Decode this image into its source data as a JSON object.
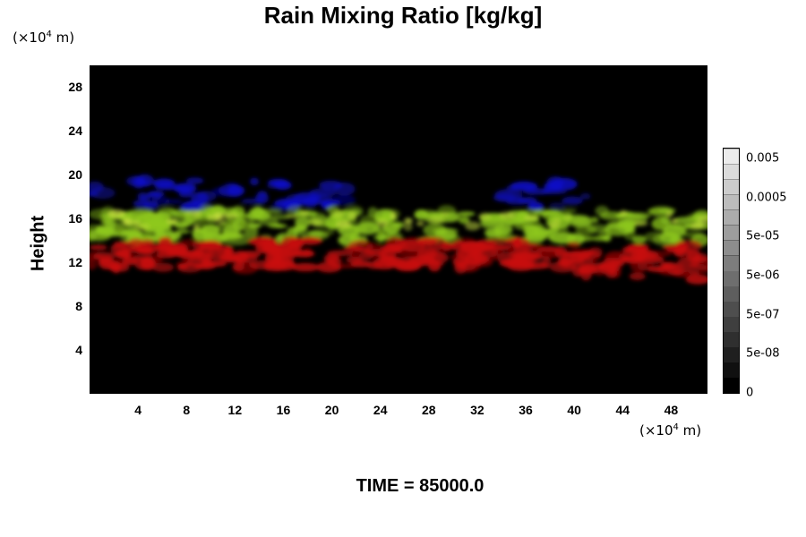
{
  "chart_data": {
    "type": "heatmap",
    "title": "Rain Mixing Ratio [kg/kg]",
    "ylabel": "Height",
    "y_unit": "(×10",
    "x_unit": "(×10",
    "unit_exp": "4",
    "unit_tail": " m)",
    "x_ticks": [
      "4",
      "8",
      "12",
      "16",
      "20",
      "24",
      "28",
      "32",
      "36",
      "40",
      "44",
      "48"
    ],
    "x_tick_values": [
      4,
      8,
      12,
      16,
      20,
      24,
      28,
      32,
      36,
      40,
      44,
      48
    ],
    "y_ticks": [
      "4",
      "8",
      "12",
      "16",
      "20",
      "24",
      "28"
    ],
    "y_tick_values": [
      4,
      8,
      12,
      16,
      20,
      24,
      28
    ],
    "xlim": [
      0,
      51
    ],
    "ylim": [
      0,
      30
    ],
    "colorbar_labels": [
      "0.005",
      "0.0005",
      "5e-05",
      "5e-06",
      "5e-07",
      "5e-08",
      "0"
    ],
    "colorbar_label_levels": [
      0.96,
      0.8,
      0.64,
      0.48,
      0.32,
      0.16,
      0.0
    ],
    "colorbar_segments": 16,
    "bands": [
      {
        "name": "blue",
        "color": "#1010c8",
        "y_min": 17.0,
        "y_max": 19.5
      },
      {
        "name": "yellow-green",
        "color": "#8ec81e",
        "y_min": 14.0,
        "y_max": 16.8
      },
      {
        "name": "red",
        "color": "#c80c0c",
        "y_min": 11.5,
        "y_max": 14.0
      }
    ],
    "footer": "TIME = 85000.0"
  }
}
